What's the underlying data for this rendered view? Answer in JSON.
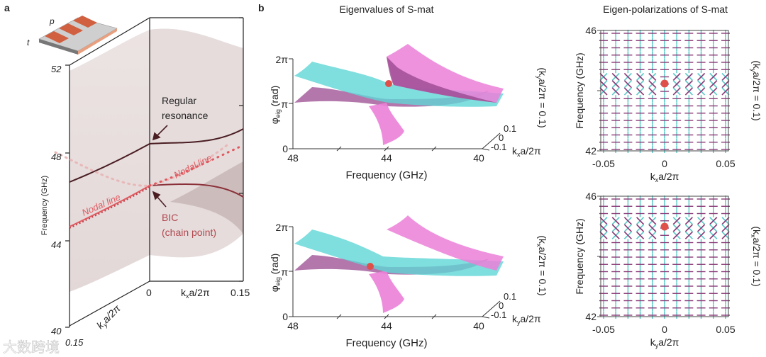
{
  "panel_a": {
    "label": "a",
    "device_labels": {
      "t": "t",
      "p": "p"
    },
    "ylabel": "Frequency (GHz)",
    "yticks": [
      "52",
      "48",
      "44",
      "40"
    ],
    "kx_label": "k",
    "kx_sub": "x",
    "kx_rest": "a/2π",
    "kx_ticks": [
      "0",
      "0.15"
    ],
    "ky_label": "k",
    "ky_sub": "y",
    "ky_rest": "a/2π",
    "ky_tick": "0.15",
    "regular_1": "Regular",
    "regular_2": "resonance",
    "bic_1": "BIC",
    "bic_2": "(chain point)",
    "nodal_left": "Nodal line",
    "nodal_right": "Nodal line"
  },
  "panel_b": {
    "label": "b",
    "title": "Eigenvalues of S-mat",
    "plots": [
      {
        "ylabel_main": "φ",
        "ylabel_sub": "eig",
        "ylabel_rest": " (rad)",
        "yticks": [
          "2π",
          "π",
          "0"
        ],
        "xticks": [
          "48",
          "44",
          "40"
        ],
        "xlabel": "Frequency (GHz)",
        "k_ticks": [
          "0.1",
          "0",
          "-0.1"
        ],
        "k_label_k": "k",
        "k_label_sub": "x",
        "k_label_rest": "a/2π",
        "side_k": "(k",
        "side_sub": "y",
        "side_rest": "a/2π = 0.1)"
      },
      {
        "ylabel_main": "φ",
        "ylabel_sub": "eig",
        "ylabel_rest": " (rad)",
        "yticks": [
          "2π",
          "π",
          "0"
        ],
        "xticks": [
          "48",
          "44",
          "40"
        ],
        "xlabel": "Frequency (GHz)",
        "k_ticks": [
          "0.1",
          "0",
          "-0.1"
        ],
        "k_label_k": "k",
        "k_label_sub": "y",
        "k_label_rest": "a/2π",
        "side_k": "(k",
        "side_sub": "x",
        "side_rest": "a/2π = 0.1)"
      }
    ]
  },
  "panel_c": {
    "title": "Eigen-polarizations of S-mat",
    "plots": [
      {
        "ylabel": "Frequency (GHz)",
        "yticks": [
          "46",
          "42"
        ],
        "xticks": [
          "-0.05",
          "0",
          "0.05"
        ],
        "xlabel_k": "k",
        "xlabel_sub": "x",
        "xlabel_rest": "a/2π",
        "side_k": "(k",
        "side_sub": "y",
        "side_rest": "a/2π = 0.1)"
      },
      {
        "ylabel": "Frequency (GHz)",
        "yticks": [
          "46",
          "42"
        ],
        "xticks": [
          "-0.05",
          "0",
          "0.05"
        ],
        "xlabel_k": "k",
        "xlabel_sub": "y",
        "xlabel_rest": "a/2π",
        "side_k": "(k",
        "side_sub": "x",
        "side_rest": "a/2π = 0.1)"
      }
    ]
  },
  "watermark": "大数跨境",
  "colors": {
    "cyan": "#5cc9c9",
    "magenta": "#e76fcf",
    "purple": "#8a3a78",
    "bic_red": "#e0504a",
    "band_dark": "#4a1e22",
    "nodal_red": "#d9535a",
    "shade": "#e8dede"
  }
}
